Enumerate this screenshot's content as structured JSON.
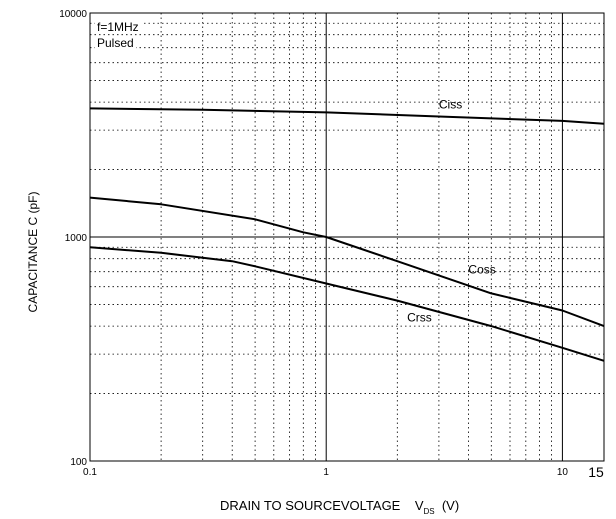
{
  "chart_data": {
    "type": "line",
    "x_scale": "log",
    "y_scale": "log",
    "xlim": [
      0.1,
      15
    ],
    "ylim": [
      100,
      10000
    ],
    "grid": true,
    "x_ticks": [
      "0.1",
      "1",
      "10",
      "15"
    ],
    "y_ticks": [
      "100",
      "1000",
      "10000"
    ],
    "xlabel_main": "DRAIN TO SOURCEVOLTAGE",
    "xlabel_symbol": "V",
    "xlabel_sub": "DS",
    "xlabel_unit": "(V)",
    "ylabel": "CAPACITANCE   C (pF)",
    "annotation_line1": "f=1MHz",
    "annotation_line2": "Pulsed",
    "series": [
      {
        "name": "Ciss",
        "x": [
          0.1,
          0.3,
          1,
          3,
          10,
          15
        ],
        "values": [
          3750,
          3700,
          3600,
          3450,
          3300,
          3200
        ]
      },
      {
        "name": "Coss",
        "x": [
          0.1,
          0.2,
          0.5,
          0.8,
          1,
          2,
          5,
          10,
          15
        ],
        "values": [
          1500,
          1400,
          1200,
          1050,
          1000,
          780,
          560,
          470,
          400
        ]
      },
      {
        "name": "Crss",
        "x": [
          0.1,
          0.2,
          0.4,
          0.5,
          1,
          2,
          5,
          10,
          15
        ],
        "values": [
          900,
          850,
          780,
          740,
          620,
          520,
          400,
          320,
          280
        ]
      }
    ]
  }
}
